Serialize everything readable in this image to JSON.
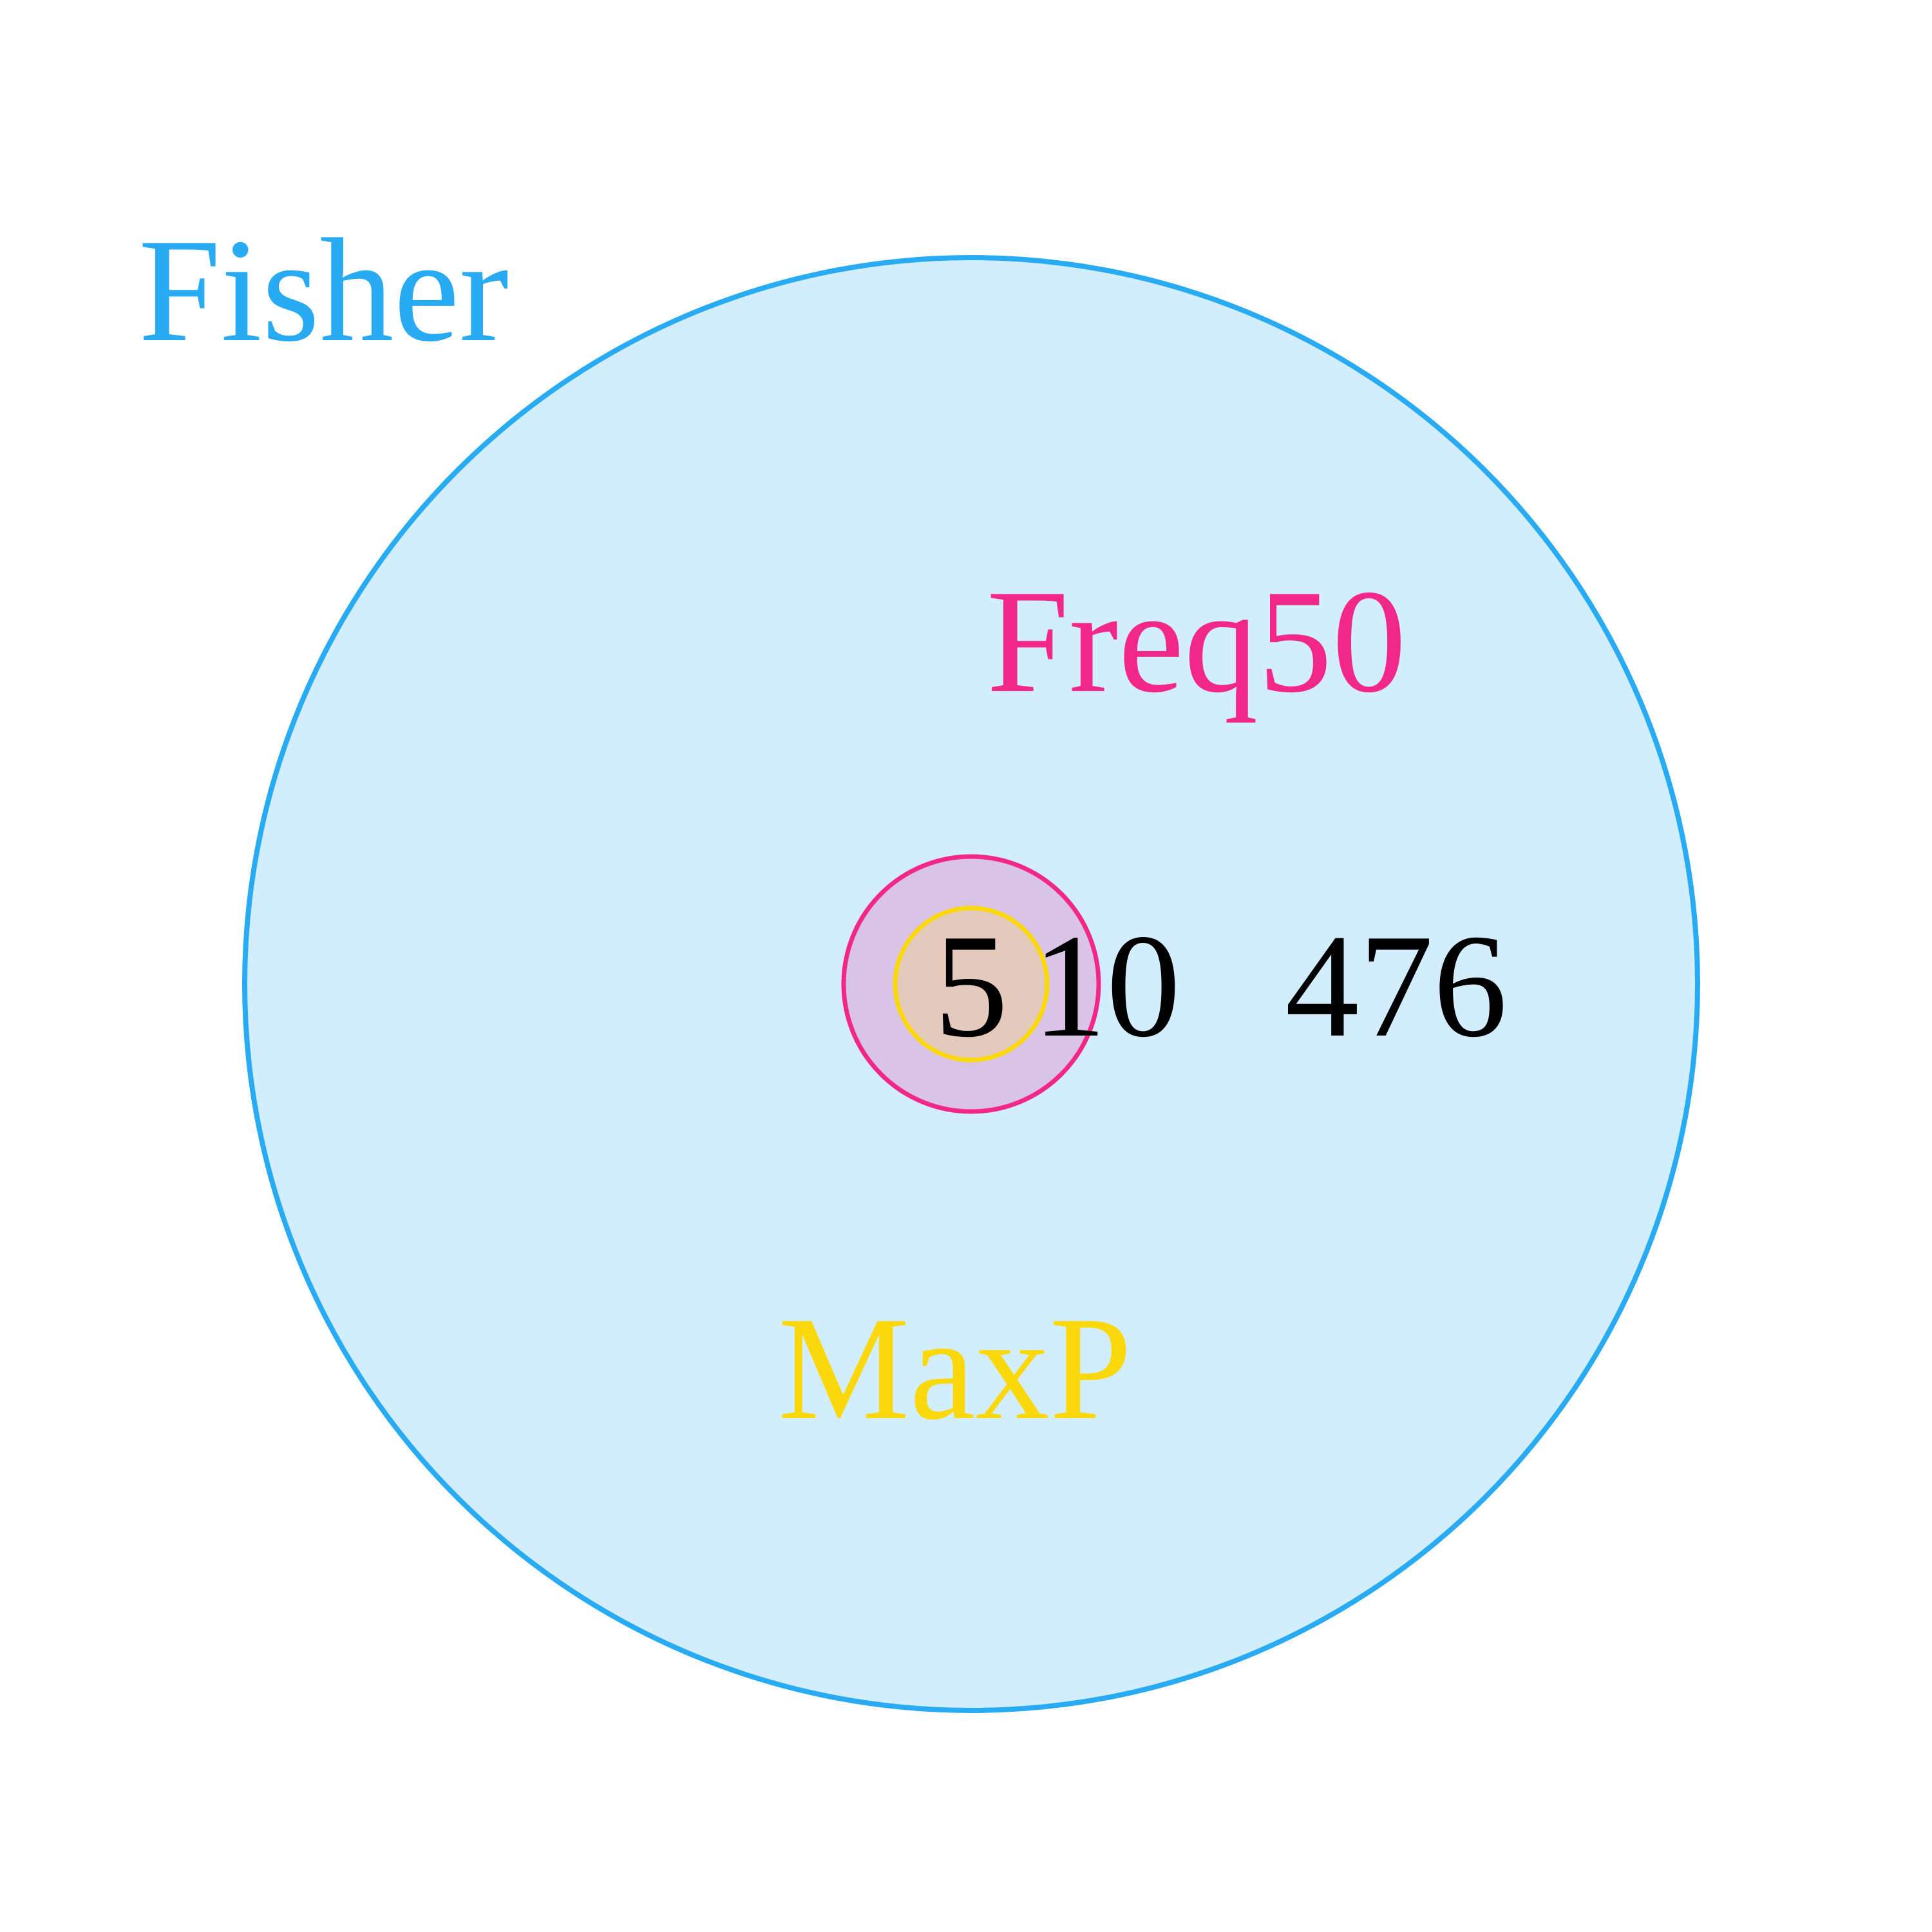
{
  "diagram": {
    "type": "venn",
    "sets": [
      {
        "id": "fisher",
        "name": "Fisher",
        "stroke_color": "#29ABF3",
        "fill_color": "#D2EEFC",
        "label_color": "#29ABF3"
      },
      {
        "id": "freq50",
        "name": "Freq50",
        "stroke_color": "#F2278A",
        "fill_color": "#D9C4E7",
        "label_color": "#F2278A"
      },
      {
        "id": "maxp",
        "name": "MaxP",
        "stroke_color": "#FBD80C",
        "fill_color": "#E3CABC",
        "label_color": "#FBD80C"
      }
    ],
    "region_counts": [
      {
        "region": "fisher+freq50+maxp",
        "value": "5"
      },
      {
        "region": "fisher+freq50 only",
        "value": "10"
      },
      {
        "region": "fisher only",
        "value": "476"
      }
    ]
  }
}
